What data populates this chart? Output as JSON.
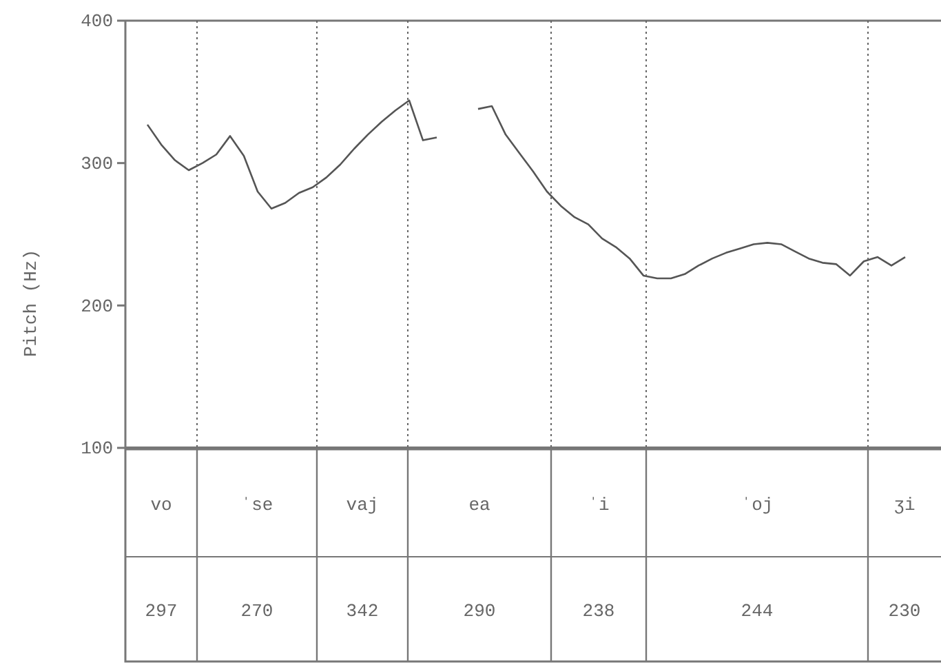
{
  "chart_data": [
    {
      "type": "line",
      "ylabel": "Pitch (Hz)",
      "ylim": [
        100,
        400
      ],
      "yticks": [
        100,
        200,
        300,
        400
      ],
      "marker": "none",
      "line_style": "solid",
      "grid": false,
      "tick_labels": "y",
      "categories": [
        null,
        null,
        null,
        null,
        null,
        null,
        null,
        null,
        null,
        null,
        null,
        null,
        null,
        null,
        null,
        null,
        null,
        null,
        null,
        null,
        null,
        null,
        null,
        null,
        null,
        null,
        null,
        null,
        null,
        null,
        null,
        null,
        null,
        null,
        null,
        null,
        null,
        null,
        null,
        null,
        null,
        null,
        null,
        null,
        null,
        null,
        null,
        null,
        null,
        null,
        null,
        null,
        null,
        null,
        null,
        null
      ],
      "series": [
        {
          "color": "#555555",
          "values": [
            327,
            313,
            302,
            295,
            300,
            306,
            319,
            305,
            280,
            268,
            272,
            279,
            283,
            290,
            299,
            310,
            320,
            329,
            337,
            344,
            316,
            318,
            null,
            null,
            null,
            null,
            null,
            null,
            null,
            null,
            null,
            null,
            null,
            null,
            null,
            null,
            null,
            null,
            null,
            null,
            null,
            null,
            null,
            null,
            null,
            null,
            null,
            null,
            null,
            null,
            null,
            null,
            null,
            null,
            null,
            null
          ]
        },
        {
          "color": "#555555",
          "values": [
            null,
            null,
            null,
            null,
            null,
            null,
            null,
            null,
            null,
            null,
            null,
            null,
            null,
            null,
            null,
            null,
            null,
            null,
            null,
            null,
            null,
            null,
            null,
            null,
            338,
            340,
            320,
            307,
            294,
            280,
            270,
            262,
            257,
            247,
            241,
            233,
            221,
            219,
            219,
            222,
            228,
            233,
            237,
            240,
            243,
            244,
            243,
            238,
            233,
            230,
            229,
            221,
            231,
            234,
            228,
            234
          ]
        }
      ]
    },
    {
      "type": "other",
      "categories": [
        "vo",
        "ˈse",
        "vaj",
        "ea",
        "ˈi",
        "ˈoj",
        "ʒi"
      ],
      "annotations": [
        "297",
        "270",
        "342",
        "290",
        "238",
        "244",
        "230"
      ]
    }
  ]
}
